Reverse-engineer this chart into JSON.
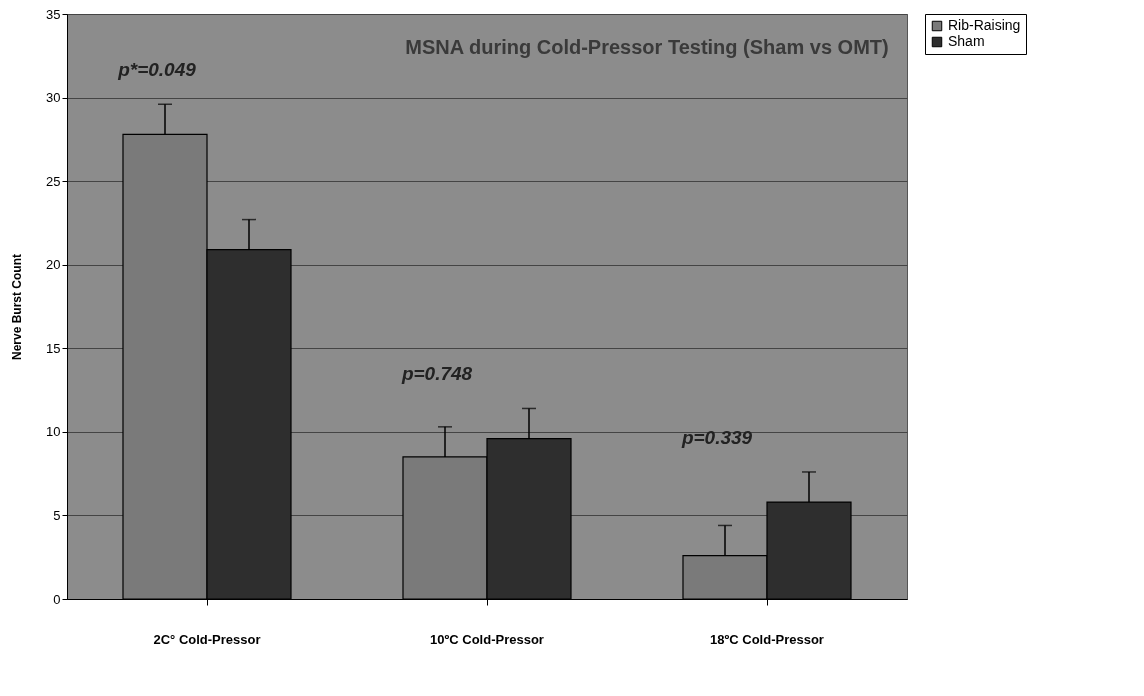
{
  "chart_data": {
    "type": "bar",
    "title": "MSNA during Cold-Pressor Testing (Sham vs OMT)",
    "ylabel": "Nerve Burst Count",
    "categories": [
      "2C° Cold-Pressor",
      "10ºC Cold-Pressor",
      "18ºC Cold-Pressor"
    ],
    "series": [
      {
        "name": "Rib-Raising",
        "color": "#7a7a7a",
        "values": [
          27.8,
          8.5,
          2.6
        ],
        "errors": [
          [
            27.8,
            29.6
          ],
          [
            8.5,
            10.3
          ],
          [
            2.6,
            4.4
          ]
        ]
      },
      {
        "name": "Sham",
        "color": "#2e2e2e",
        "values": [
          20.9,
          9.6,
          5.8
        ],
        "errors": [
          [
            20.9,
            22.7
          ],
          [
            9.6,
            11.4
          ],
          [
            5.8,
            7.6
          ]
        ]
      }
    ],
    "ylim": [
      0,
      35
    ],
    "yticks": [
      0,
      5,
      10,
      15,
      20,
      25,
      30,
      35
    ],
    "grid": "y",
    "legend": "right",
    "annotations": [
      "p*=0.049",
      "p=0.748",
      "p=0.339"
    ]
  }
}
